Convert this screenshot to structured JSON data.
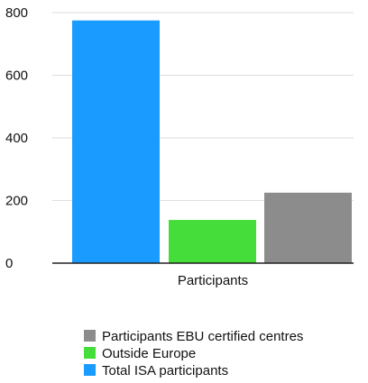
{
  "chart_data": {
    "type": "bar",
    "categories": [
      "Participants"
    ],
    "series": [
      {
        "name": "Total ISA participants",
        "color": "#1a9bff",
        "values": [
          775
        ]
      },
      {
        "name": "Outside Europe",
        "color": "#45dd3a",
        "values": [
          138
        ]
      },
      {
        "name": "Participants EBU certified centres",
        "color": "#8c8c8c",
        "values": [
          225
        ]
      }
    ],
    "legend_order": [
      "Participants EBU certified centres",
      "Outside Europe",
      "Total ISA participants"
    ],
    "y_ticks": [
      "0",
      "200",
      "400",
      "600",
      "800"
    ],
    "ylim": [
      0,
      800
    ],
    "grid": true,
    "legend_position": "bottom",
    "title": "",
    "xlabel": "",
    "ylabel": ""
  }
}
